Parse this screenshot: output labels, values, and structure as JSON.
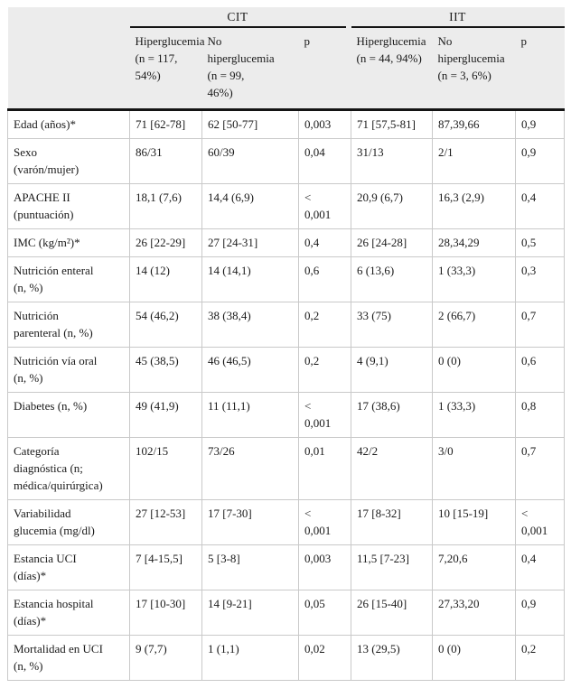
{
  "colors": {
    "header_background": "#ececec",
    "heavy_rule": "#141414",
    "grid_line": "#c9c9c9",
    "text": "#1a1a1a"
  },
  "table": {
    "groups": [
      {
        "label": "CIT"
      },
      {
        "label": "IIT"
      }
    ],
    "columns": [
      {
        "label": ""
      },
      {
        "label": "Hiperglucemia\n(n = 117,\n54%)"
      },
      {
        "label": "No\nhiperglucemia\n(n = 99,\n46%)"
      },
      {
        "label": "p"
      },
      {
        "label": "Hiperglucemia\n(n = 44, 94%)"
      },
      {
        "label": "No\nhiperglucemia\n(n = 3, 6%)"
      },
      {
        "label": "p"
      }
    ],
    "rows": [
      {
        "label": "Edad (años)*",
        "cells": [
          "71 [62-78]",
          "62 [50-77]",
          "0,003",
          "71 [57,5-81]",
          "87,39,66",
          "0,9"
        ]
      },
      {
        "label": "Sexo\n(varón/mujer)",
        "cells": [
          "86/31",
          "60/39",
          "0,04",
          "31/13",
          "2/1",
          "0,9"
        ]
      },
      {
        "label": "APACHE II\n(puntuación)",
        "cells": [
          "18,1 (7,6)",
          "14,4 (6,9)",
          "<\n0,001",
          "20,9 (6,7)",
          "16,3 (2,9)",
          "0,4"
        ]
      },
      {
        "label": "IMC (kg/m²)*",
        "cells": [
          "26 [22-29]",
          "27 [24-31]",
          "0,4",
          "26 [24-28]",
          "28,34,29",
          "0,5"
        ]
      },
      {
        "label": "Nutrición enteral\n(n, %)",
        "cells": [
          "14 (12)",
          "14 (14,1)",
          "0,6",
          "6 (13,6)",
          "1 (33,3)",
          "0,3"
        ]
      },
      {
        "label": "Nutrición\nparenteral (n, %)",
        "cells": [
          "54 (46,2)",
          "38 (38,4)",
          "0,2",
          "33 (75)",
          "2 (66,7)",
          "0,7"
        ]
      },
      {
        "label": "Nutrición vía oral\n(n, %)",
        "cells": [
          "45 (38,5)",
          "46 (46,5)",
          "0,2",
          "4 (9,1)",
          "0 (0)",
          "0,6"
        ]
      },
      {
        "label": "Diabetes (n, %)",
        "cells": [
          "49 (41,9)",
          "11 (11,1)",
          "<\n0,001",
          "17 (38,6)",
          "1 (33,3)",
          "0,8"
        ]
      },
      {
        "label": "Categoría\ndiagnóstica (n;\nmédica/quirúrgica)",
        "cells": [
          "102/15",
          "73/26",
          "0,01",
          "42/2",
          "3/0",
          "0,7"
        ]
      },
      {
        "label": "Variabilidad\nglucemia (mg/dl)",
        "cells": [
          "27 [12-53]",
          "17 [7-30]",
          "<\n0,001",
          "17 [8-32]",
          "10 [15-19]",
          "<\n0,001"
        ]
      },
      {
        "label": "Estancia UCI\n(días)*",
        "cells": [
          "7 [4-15,5]",
          "5 [3-8]",
          "0,003",
          "11,5 [7-23]",
          "7,20,6",
          "0,4"
        ]
      },
      {
        "label": "Estancia hospital\n(días)*",
        "cells": [
          "17 [10-30]",
          "14 [9-21]",
          "0,05",
          "26 [15-40]",
          "27,33,20",
          "0,9"
        ]
      },
      {
        "label": "Mortalidad en UCI\n(n, %)",
        "cells": [
          "9 (7,7)",
          "1 (1,1)",
          "0,02",
          "13 (29,5)",
          "0 (0)",
          "0,2"
        ]
      }
    ]
  }
}
